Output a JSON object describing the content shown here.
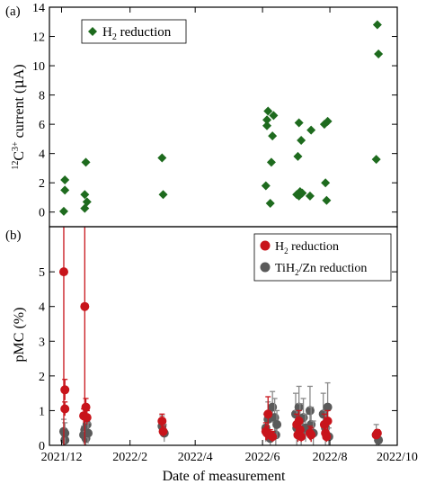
{
  "chart_data": [
    {
      "panel_label": "(a)",
      "type": "scatter",
      "ylabel_parts": {
        "pre": "12",
        "base": "C",
        "sup": "3+",
        "rest": " current (",
        "mu": "μ",
        "unit": "A)"
      },
      "ylim": [
        -1,
        14
      ],
      "yticks": [
        0,
        2,
        4,
        6,
        8,
        10,
        12,
        14
      ],
      "xlim": [
        "2021-11-20",
        "2022-10-01"
      ],
      "legend": {
        "position": "top-left",
        "label_pre": "H",
        "label_sub": "2",
        "label_post": " reduction"
      },
      "series": [
        {
          "name": "H2 reduction",
          "marker": "diamond",
          "color": "#1e6b1e",
          "points": [
            [
              "2021-12-03",
              0.05
            ],
            [
              "2021-12-04",
              1.5
            ],
            [
              "2021-12-04",
              2.2
            ],
            [
              "2021-12-22",
              0.25
            ],
            [
              "2021-12-22",
              1.2
            ],
            [
              "2021-12-23",
              3.4
            ],
            [
              "2021-12-24",
              0.7
            ],
            [
              "2022-03-02",
              3.7
            ],
            [
              "2022-03-03",
              1.2
            ],
            [
              "2022-06-04",
              1.8
            ],
            [
              "2022-06-05",
              5.9
            ],
            [
              "2022-06-05",
              6.3
            ],
            [
              "2022-06-06",
              6.9
            ],
            [
              "2022-06-08",
              0.6
            ],
            [
              "2022-06-09",
              3.4
            ],
            [
              "2022-06-10",
              5.2
            ],
            [
              "2022-06-11",
              6.6
            ],
            [
              "2022-07-02",
              1.2
            ],
            [
              "2022-07-03",
              3.8
            ],
            [
              "2022-07-04",
              6.1
            ],
            [
              "2022-07-04",
              1.1
            ],
            [
              "2022-07-05",
              1.4
            ],
            [
              "2022-07-06",
              4.9
            ],
            [
              "2022-07-07",
              1.3
            ],
            [
              "2022-07-14",
              1.1
            ],
            [
              "2022-07-15",
              5.6
            ],
            [
              "2022-07-27",
              6.0
            ],
            [
              "2022-07-28",
              2.0
            ],
            [
              "2022-07-29",
              0.8
            ],
            [
              "2022-07-30",
              6.2
            ],
            [
              "2022-09-12",
              3.6
            ],
            [
              "2022-09-13",
              12.8
            ],
            [
              "2022-09-14",
              10.8
            ]
          ]
        }
      ]
    },
    {
      "panel_label": "(b)",
      "type": "scatter",
      "ylabel": "pMC (%)",
      "ylim": [
        0,
        6.3
      ],
      "yticks": [
        0,
        1,
        2,
        3,
        4,
        5
      ],
      "xlim": [
        "2021-11-20",
        "2022-10-01"
      ],
      "xlabel": "Date of measurement",
      "xticks": [
        {
          "date": "2021-12-01",
          "label": "2021/12"
        },
        {
          "date": "2022-02-01",
          "label": "2022/2"
        },
        {
          "date": "2022-04-01",
          "label": "2022/4"
        },
        {
          "date": "2022-06-01",
          "label": "2022/6"
        },
        {
          "date": "2022-08-01",
          "label": "2022/8"
        },
        {
          "date": "2022-10-01",
          "label": "2022/10"
        }
      ],
      "legend": {
        "position": "top-right",
        "entries": [
          {
            "pre": "H",
            "sub": "2",
            "post": " reduction",
            "color": "#c8141b"
          },
          {
            "pre": "TiH",
            "sub": "2",
            "post": "/Zn reduction",
            "color": "#5a5a5a"
          }
        ]
      },
      "series": [
        {
          "name": "TiH2/Zn reduction",
          "marker": "circle",
          "color": "#5a5a5a",
          "errcolor": "#8a8a8a",
          "points": [
            [
              "2021-12-03",
              0.4,
              0.35
            ],
            [
              "2021-12-04",
              0.15,
              0.15
            ],
            [
              "2021-12-04",
              0.35,
              0.3
            ],
            [
              "2021-12-21",
              0.3,
              0.25
            ],
            [
              "2021-12-22",
              0.45,
              0.35
            ],
            [
              "2021-12-23",
              0.2,
              0.2
            ],
            [
              "2021-12-24",
              0.6,
              0.4
            ],
            [
              "2021-12-25",
              0.35,
              0.3
            ],
            [
              "2022-03-02",
              0.55,
              0.3
            ],
            [
              "2022-03-04",
              0.35,
              0.25
            ],
            [
              "2022-06-04",
              0.5,
              0.4
            ],
            [
              "2022-06-06",
              0.75,
              0.5
            ],
            [
              "2022-06-08",
              0.2,
              0.2
            ],
            [
              "2022-06-10",
              1.1,
              0.45
            ],
            [
              "2022-06-12",
              0.8,
              0.55
            ],
            [
              "2022-06-13",
              0.3,
              0.3
            ],
            [
              "2022-06-14",
              0.6,
              0.4
            ],
            [
              "2022-07-01",
              0.9,
              0.6
            ],
            [
              "2022-07-02",
              0.5,
              0.5
            ],
            [
              "2022-07-04",
              1.1,
              0.6
            ],
            [
              "2022-07-05",
              0.7,
              0.5
            ],
            [
              "2022-07-06",
              0.3,
              0.3
            ],
            [
              "2022-07-08",
              0.8,
              0.55
            ],
            [
              "2022-07-10",
              0.5,
              0.4
            ],
            [
              "2022-07-14",
              1.0,
              0.7
            ],
            [
              "2022-07-15",
              0.6,
              0.5
            ],
            [
              "2022-07-17",
              0.35,
              0.35
            ],
            [
              "2022-07-26",
              0.9,
              0.6
            ],
            [
              "2022-07-28",
              0.5,
              0.5
            ],
            [
              "2022-07-30",
              1.1,
              0.7
            ],
            [
              "2022-07-31",
              0.25,
              0.25
            ],
            [
              "2022-09-12",
              0.3,
              0.3
            ],
            [
              "2022-09-14",
              0.15,
              0.15
            ]
          ]
        },
        {
          "name": "H2 reduction",
          "marker": "circle",
          "color": "#c8141b",
          "errcolor": "#c8141b",
          "points": [
            [
              "2021-12-03",
              5.0,
              6.5
            ],
            [
              "2021-12-04",
              1.6,
              0.3
            ],
            [
              "2021-12-04",
              1.05,
              0.2
            ],
            [
              "2021-12-21",
              0.85,
              0.2
            ],
            [
              "2021-12-22",
              4.0,
              6.5
            ],
            [
              "2021-12-23",
              1.1,
              0.25
            ],
            [
              "2021-12-24",
              0.8,
              0.2
            ],
            [
              "2022-03-02",
              0.7,
              0.2
            ],
            [
              "2022-03-03",
              0.4,
              0.15
            ],
            [
              "2022-06-04",
              0.4,
              0.25
            ],
            [
              "2022-06-05",
              0.35,
              0.2
            ],
            [
              "2022-06-06",
              0.9,
              0.5
            ],
            [
              "2022-06-08",
              0.3,
              0.15
            ],
            [
              "2022-06-10",
              0.25,
              0.15
            ],
            [
              "2022-07-02",
              0.6,
              0.3
            ],
            [
              "2022-07-03",
              0.3,
              0.2
            ],
            [
              "2022-07-04",
              0.7,
              0.3
            ],
            [
              "2022-07-05",
              0.45,
              0.2
            ],
            [
              "2022-07-06",
              0.25,
              0.15
            ],
            [
              "2022-07-14",
              0.35,
              0.2
            ],
            [
              "2022-07-15",
              0.3,
              0.2
            ],
            [
              "2022-07-27",
              0.6,
              0.3
            ],
            [
              "2022-07-28",
              0.35,
              0.2
            ],
            [
              "2022-07-29",
              0.25,
              0.15
            ],
            [
              "2022-07-30",
              0.7,
              0.3
            ],
            [
              "2022-09-12",
              0.3,
              0.1
            ],
            [
              "2022-09-13",
              0.35,
              0.1
            ]
          ]
        }
      ]
    }
  ]
}
